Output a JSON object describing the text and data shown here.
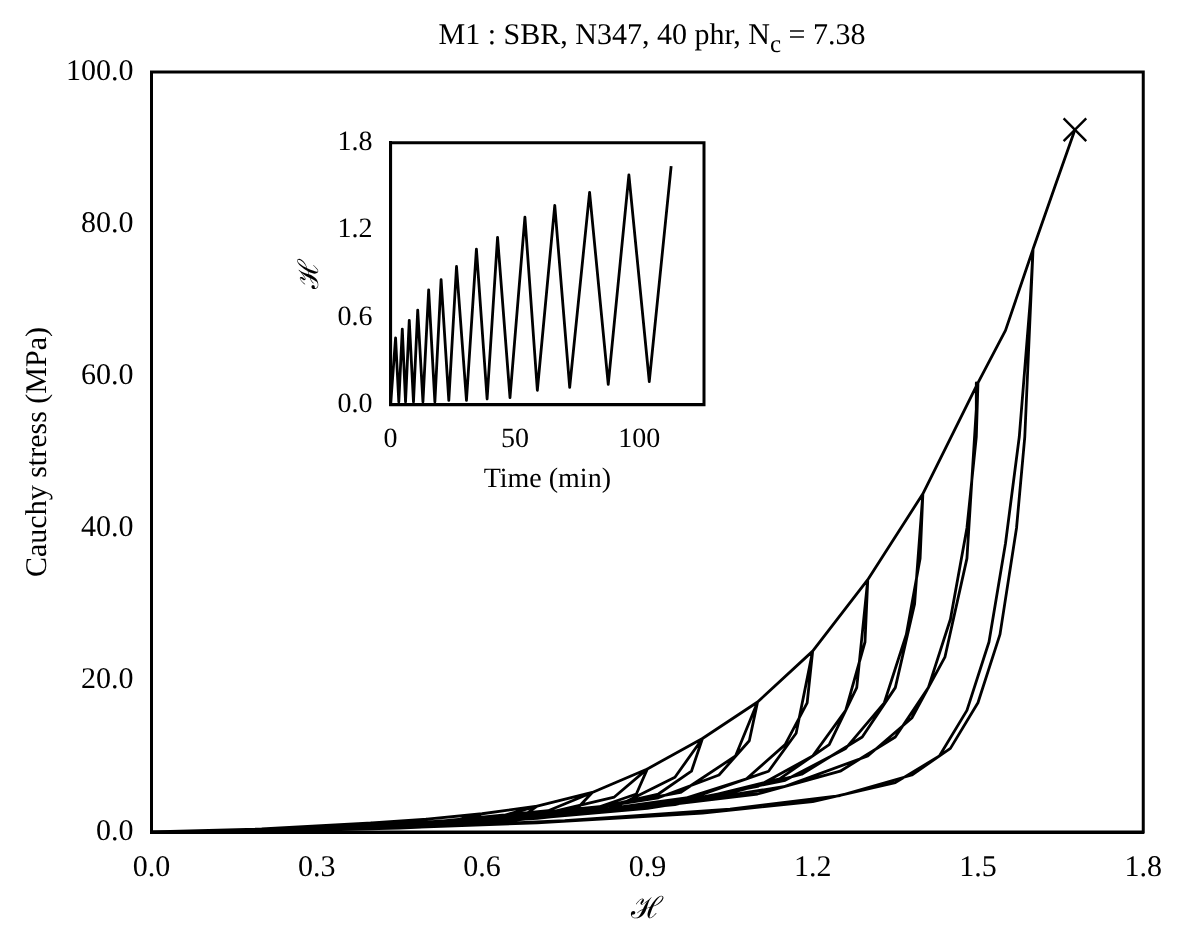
{
  "chart_data": [
    {
      "type": "line",
      "title": "M1 : SBR, N347, 40 phr, N$_{c}$ = 7.38",
      "xlabel": "ℋ",
      "ylabel": "Cauchy stress (MPa)",
      "xlim": [
        0,
        1.8
      ],
      "xticks": [
        {
          "value": 0,
          "label": "0.0"
        },
        {
          "value": 0.3,
          "label": "0.3"
        },
        {
          "value": 0.6,
          "label": "0.6"
        },
        {
          "value": 0.9,
          "label": "0.9"
        },
        {
          "value": 1.2,
          "label": "1.2"
        },
        {
          "value": 1.5,
          "label": "1.5"
        },
        {
          "value": 1.8,
          "label": "1.8"
        }
      ],
      "ylim": [
        0,
        100
      ],
      "yticks": [
        {
          "value": 0,
          "label": "0.0"
        },
        {
          "value": 20,
          "label": "20.0"
        },
        {
          "value": 40,
          "label": "40.0"
        },
        {
          "value": 60,
          "label": "60.0"
        },
        {
          "value": 80,
          "label": "80.0"
        },
        {
          "value": 100,
          "label": "100.0"
        }
      ],
      "series": [
        {
          "type": "line",
          "color": "#000000",
          "marker": "none",
          "x": [
            0,
            0.2,
            0.4,
            0.38,
            0.3,
            0.15,
            0.02,
            0.2,
            0.35,
            0.4,
            0.5,
            0.47,
            0.35,
            0.15,
            0.03,
            0.3,
            0.45,
            0.5,
            0.6,
            0.57,
            0.45,
            0.25,
            0.04,
            0.35,
            0.55,
            0.6,
            0.7,
            0.67,
            0.55,
            0.3,
            0.05,
            0.4,
            0.63,
            0.7,
            0.8,
            0.77,
            0.65,
            0.4,
            0.06,
            0.45,
            0.72,
            0.8,
            0.9,
            0.88,
            0.8,
            0.6,
            0.3,
            0.07,
            0.4,
            0.7,
            0.84,
            0.9,
            1.0,
            0.98,
            0.92,
            0.8,
            0.5,
            0.08,
            0.5,
            0.85,
            0.95,
            1.0,
            1.1,
            1.085,
            1.03,
            0.92,
            0.7,
            0.4,
            0.1,
            0.45,
            0.75,
            0.96,
            1.06,
            1.1,
            1.2,
            1.19,
            1.15,
            1.08,
            0.95,
            0.7,
            0.4,
            0.11,
            0.45,
            0.75,
            0.99,
            1.12,
            1.17,
            1.2,
            1.3,
            1.295,
            1.26,
            1.2,
            1.1,
            0.9,
            0.6,
            0.3,
            0.12,
            0.35,
            0.65,
            0.95,
            1.14,
            1.23,
            1.28,
            1.3,
            1.4,
            1.395,
            1.37,
            1.33,
            1.26,
            1.15,
            0.95,
            0.65,
            0.35,
            0.13,
            0.4,
            0.7,
            1.0,
            1.18,
            1.29,
            1.35,
            1.385,
            1.4,
            1.5,
            1.497,
            1.48,
            1.45,
            1.41,
            1.35,
            1.25,
            1.1,
            0.85,
            0.55,
            0.3,
            0.14,
            0.35,
            0.6,
            0.9,
            1.15,
            1.3,
            1.38,
            1.44,
            1.48,
            1.5,
            1.55,
            1.6,
            1.595,
            1.575,
            1.55,
            1.52,
            1.48,
            1.43,
            1.35,
            1.2,
            1.0,
            0.7,
            0.4,
            0.15,
            0.45,
            0.75,
            1.05,
            1.25,
            1.38,
            1.45,
            1.5,
            1.54,
            1.57,
            1.585,
            1.6,
            1.64,
            1.676
          ],
          "values": [
            0,
            0.4,
            1.2,
            0.6,
            0.3,
            0.1,
            0,
            0.3,
            0.8,
            1.2,
            1.7,
            0.9,
            0.4,
            0.1,
            0,
            0.5,
            1.1,
            1.7,
            2.4,
            1.3,
            0.7,
            0.2,
            0,
            0.6,
            1.5,
            2.4,
            3.4,
            1.9,
            1.0,
            0.3,
            0,
            0.8,
            2.0,
            3.4,
            5.2,
            2.9,
            1.5,
            0.5,
            0,
            0.9,
            2.8,
            5.2,
            8.3,
            5,
            3,
            1.3,
            0.3,
            0,
            0.7,
            2.2,
            4.6,
            8.3,
            12.3,
            8,
            5,
            3,
            1,
            0,
            1.1,
            3.6,
            7.2,
            12.3,
            17.1,
            12,
            7.5,
            4.5,
            2,
            0.6,
            0,
            0.8,
            2.4,
            5.2,
            10,
            17.1,
            23.8,
            17,
            11.5,
            7,
            4,
            1.9,
            0.6,
            0,
            0.8,
            2.3,
            4.7,
            8,
            13,
            23.8,
            33.2,
            25,
            16,
            10,
            6,
            3.2,
            1.3,
            0.3,
            0,
            0.4,
            1.5,
            3.6,
            7,
            11.5,
            19,
            33.2,
            44.5,
            36,
            26,
            17,
            11,
            6.8,
            3.8,
            1.5,
            0.4,
            0,
            0.5,
            1.8,
            4.2,
            7.6,
            12.5,
            19,
            30,
            44.5,
            59.1,
            52,
            40,
            28,
            19,
            12.5,
            8,
            5,
            2.8,
            1,
            0.3,
            0,
            0.4,
            1.2,
            3.1,
            6,
            10,
            15,
            23,
            36,
            59.1,
            66,
            76.7,
            70,
            52,
            38,
            25,
            16,
            10,
            6.5,
            4,
            2.5,
            1.2,
            0.4,
            0,
            0.5,
            1.5,
            3,
            4.8,
            7.5,
            11,
            17,
            26,
            40,
            52,
            76.7,
            85,
            92.4
          ]
        },
        {
          "type": "scatter",
          "color": "#000000",
          "marker": "cross",
          "x": [
            1.676
          ],
          "values": [
            92.4
          ]
        }
      ]
    },
    {
      "type": "line",
      "xlabel": "Time (min)",
      "ylabel": "ℋ",
      "xlim": [
        0,
        126
      ],
      "xticks": [
        0,
        50,
        100
      ],
      "ylim": [
        0,
        1.8
      ],
      "yticks": [
        {
          "value": 0,
          "label": "0.0"
        },
        {
          "value": 0.6,
          "label": "0.6"
        },
        {
          "value": 1.2,
          "label": "1.2"
        },
        {
          "value": 1.8,
          "label": "1.8"
        }
      ],
      "series": [
        {
          "type": "line",
          "color": "#000000",
          "marker": "none",
          "x": [
            0,
            2,
            3.3,
            4.7,
            6,
            7.5,
            9.2,
            10.9,
            13,
            15.3,
            17.8,
            20.3,
            23.4,
            26.5,
            30.5,
            34.5,
            38.8,
            43,
            48,
            54,
            59,
            66,
            72,
            80,
            87.5,
            95.8,
            104,
            112.8
          ],
          "values": [
            0,
            0.46,
            0.02,
            0.52,
            0.02,
            0.58,
            0.02,
            0.65,
            0.02,
            0.79,
            0.02,
            0.86,
            0.03,
            0.95,
            0.03,
            1.07,
            0.04,
            1.15,
            0.05,
            1.29,
            0.1,
            1.37,
            0.12,
            1.46,
            0.14,
            1.58,
            0.16,
            1.64
          ]
        }
      ]
    }
  ]
}
